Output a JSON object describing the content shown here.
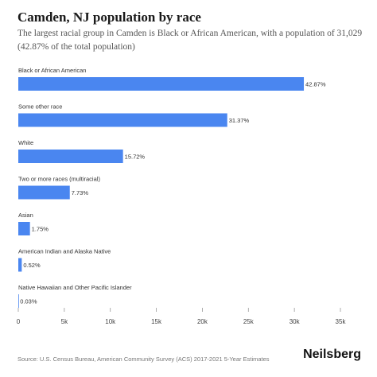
{
  "header": {
    "title": "Camden, NJ population by race",
    "subtitle": "The largest racial group in Camden is Black or African American, with a population of 31,029 (42.87% of the total population)"
  },
  "footer": {
    "source": "Source: U.S. Census Bureau, American Community Survey (ACS) 2017-2021 5-Year Estimates",
    "brand": "Neilsberg"
  },
  "chart_data": {
    "type": "bar",
    "orientation": "horizontal",
    "categories": [
      "Black or African American",
      "Some other race",
      "White",
      "Two or more races (multiracial)",
      "Asian",
      "American Indian and Alaska Native",
      "Native Hawaiian and Other Pacific Islander"
    ],
    "values": [
      31029,
      22705,
      11378,
      5595,
      1267,
      376,
      22
    ],
    "data_labels": [
      "42.87%",
      "31.37%",
      "15.72%",
      "7.73%",
      "1.75%",
      "0.52%",
      "0.03%"
    ],
    "xlim": [
      0,
      35000
    ],
    "xticks": [
      0,
      5000,
      10000,
      15000,
      20000,
      25000,
      30000,
      35000
    ],
    "xtick_labels": [
      "0",
      "5k",
      "10k",
      "15k",
      "20k",
      "25k",
      "30k",
      "35k"
    ],
    "grid": false,
    "bar_color": "#4a86f0",
    "title": "Camden, NJ population by race"
  }
}
